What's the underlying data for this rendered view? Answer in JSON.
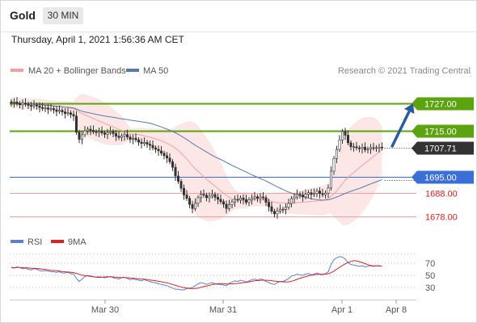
{
  "header": {
    "instrument": "Gold",
    "timeframe": "30 MIN",
    "datetime": "Thursday, April 1, 2021 1:56:36 AM CET"
  },
  "legend": {
    "ma20": "MA 20 + Bollinger Bands",
    "ma50": "MA 50",
    "credit": "Research © 2021 Trading Central"
  },
  "rsi_legend": {
    "rsi": "RSI",
    "ma": "9MA"
  },
  "colors": {
    "resistance": "#5ba30f",
    "support_blue": "#3a6fd8",
    "support_red": "#f5a0a0",
    "bollinger": "#fde2e2",
    "ma20": "#f4a0a0",
    "ma50": "#5b78ad",
    "candle": "#333333",
    "arrow": "#2c5aa0",
    "rsi": "#5b7fd6",
    "rsi_ma": "#e02020"
  },
  "chart_data": [
    {
      "type": "candlestick",
      "x_labels": [
        "Mar 30",
        "Mar 31",
        "Apr 1",
        "Apr 8"
      ],
      "current_price": "1707.71",
      "levels": [
        {
          "value": "1727.00",
          "kind": "resistance",
          "target": true
        },
        {
          "value": "1715.00",
          "kind": "resistance"
        },
        {
          "value": "1707.71",
          "kind": "current"
        },
        {
          "value": "1695.00",
          "kind": "support"
        },
        {
          "value": "1688.00",
          "kind": "support"
        },
        {
          "value": "1678.00",
          "kind": "support"
        }
      ],
      "ylim": [
        1676,
        1733
      ],
      "close": [
        1727.2,
        1727.6,
        1726.9,
        1726.4,
        1727.1,
        1726.7,
        1726.1,
        1725.8,
        1726.3,
        1725.9,
        1725.2,
        1724.8,
        1725.0,
        1724.5,
        1724.7,
        1724.2,
        1723.5,
        1724.0,
        1723.3,
        1722.6,
        1722.9,
        1722.2,
        1721.5,
        1714.5,
        1711.4,
        1713.4,
        1715.1,
        1715.8,
        1715.3,
        1714.7,
        1714.4,
        1714.9,
        1714.2,
        1713.6,
        1714.3,
        1714.8,
        1713.9,
        1712.8,
        1712.2,
        1712.9,
        1713.5,
        1712.4,
        1711.4,
        1711.9,
        1711.2,
        1710.2,
        1709.6,
        1710.1,
        1709.3,
        1708.8,
        1707.7,
        1707.1,
        1706.4,
        1705.4,
        1704.3,
        1703.3,
        1701.7,
        1699.3,
        1695.5,
        1693.2,
        1690.2,
        1687.3,
        1685.8,
        1683.2,
        1681.4,
        1683.7,
        1686.1,
        1687.6,
        1687.2,
        1686.1,
        1686.8,
        1687.5,
        1686.3,
        1685.4,
        1684.4,
        1683.3,
        1681.4,
        1683.1,
        1684.3,
        1685.4,
        1685.1,
        1686.0,
        1685.3,
        1684.1,
        1685.2,
        1686.0,
        1686.5,
        1685.8,
        1686.4,
        1686.1,
        1684.1,
        1682.2,
        1680.2,
        1679.1,
        1680.3,
        1681.1,
        1681.0,
        1682.0,
        1683.6,
        1685.7,
        1686.4,
        1687.6,
        1687.3,
        1686.5,
        1687.6,
        1688.3,
        1687.5,
        1688.0,
        1689.0,
        1687.9,
        1687.4,
        1688.1,
        1690.3,
        1697.6,
        1703.1,
        1707.0,
        1711.1,
        1714.8,
        1713.2,
        1709.9,
        1708.2,
        1708.2,
        1707.7,
        1707.4,
        1708.0,
        1706.9,
        1707.2,
        1707.8,
        1707.6,
        1707.8,
        1708.0,
        1707.7
      ],
      "rsi": [
        63,
        62,
        64,
        63,
        61,
        62,
        60,
        59,
        61,
        60,
        58,
        57,
        58,
        57,
        56,
        56,
        55,
        56,
        54,
        54,
        55,
        53,
        52,
        45,
        40,
        44,
        48,
        50,
        49,
        48,
        47,
        48,
        47,
        46,
        47,
        48,
        46,
        45,
        44,
        46,
        47,
        45,
        43,
        44,
        43,
        42,
        41,
        43,
        41,
        40,
        38,
        38,
        36,
        35,
        34,
        33,
        31,
        29,
        27,
        27,
        26,
        26,
        28,
        29,
        30,
        33,
        36,
        38,
        37,
        35,
        37,
        38,
        36,
        35,
        35,
        34,
        33,
        37,
        39,
        41,
        40,
        42,
        41,
        39,
        41,
        43,
        44,
        42,
        44,
        43,
        40,
        38,
        36,
        35,
        38,
        40,
        40,
        42,
        45,
        49,
        50,
        52,
        51,
        50,
        52,
        53,
        51,
        52,
        54,
        52,
        51,
        53,
        56,
        68,
        76,
        79,
        81,
        80,
        77,
        71,
        68,
        67,
        66,
        65,
        66,
        64,
        65,
        66,
        65,
        66,
        66,
        65
      ],
      "rsi_ticks": [
        "70",
        "50",
        "30"
      ],
      "series": [
        {
          "name": "MA 20 + Bollinger Bands"
        },
        {
          "name": "MA 50"
        },
        {
          "name": "RSI"
        },
        {
          "name": "9MA"
        }
      ]
    }
  ]
}
